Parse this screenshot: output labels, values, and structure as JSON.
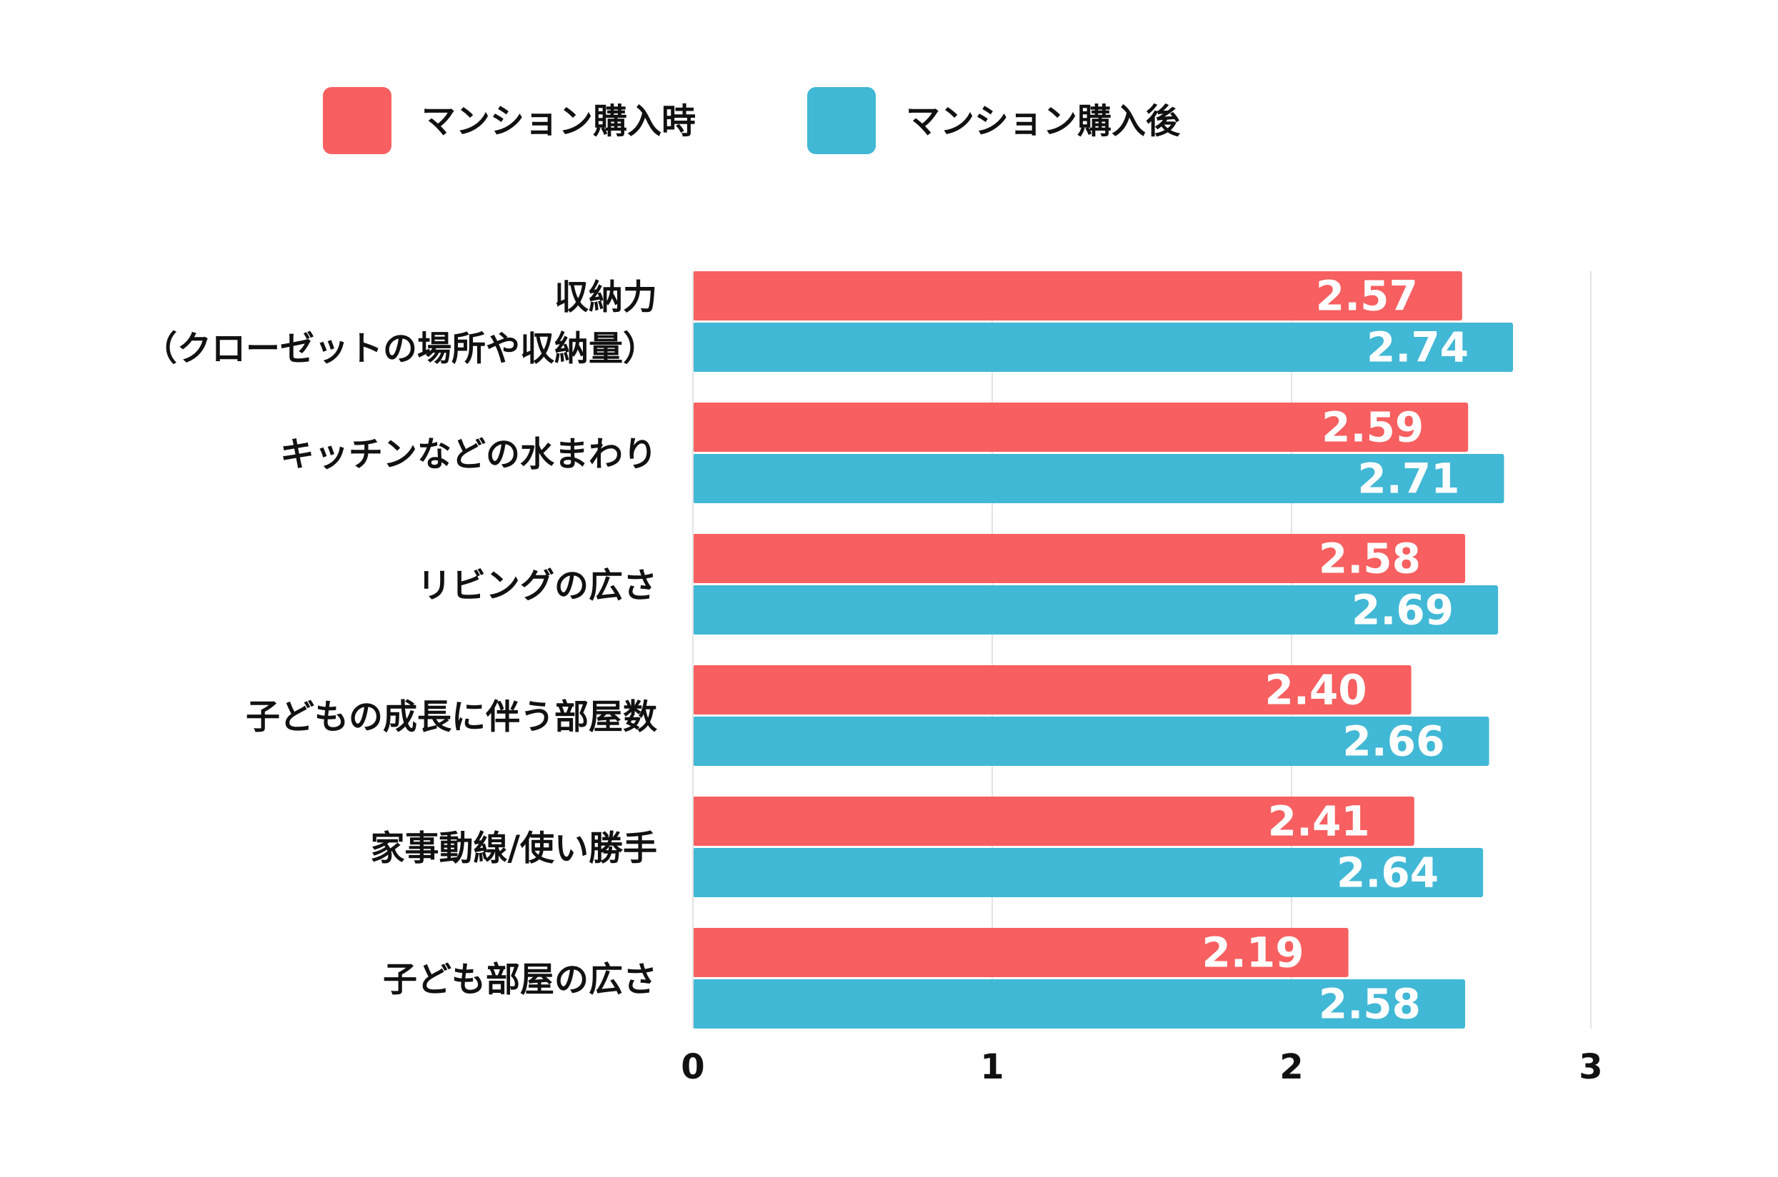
{
  "chart_data": {
    "type": "bar",
    "orientation": "horizontal",
    "categories": [
      [
        "収納力",
        "（クローゼットの場所や収納量）"
      ],
      [
        "キッチンなどの水まわり"
      ],
      [
        "リビングの広さ"
      ],
      [
        "子どもの成長に伴う部屋数"
      ],
      [
        "家事動線/使い勝手"
      ],
      [
        "子ども部屋の広さ"
      ]
    ],
    "series": [
      {
        "name": "マンション購入時",
        "color": "#F75F60",
        "values": [
          2.57,
          2.59,
          2.58,
          2.4,
          2.41,
          2.19
        ],
        "labels": [
          "2.57",
          "2.59",
          "2.58",
          "2.40",
          "2.41",
          "2.19"
        ]
      },
      {
        "name": "マンション購入後",
        "color": "#41B8D5",
        "values": [
          2.74,
          2.71,
          2.69,
          2.66,
          2.64,
          2.58
        ],
        "labels": [
          "2.74",
          "2.71",
          "2.69",
          "2.66",
          "2.64",
          "2.58"
        ]
      }
    ],
    "xlim": [
      0,
      3
    ],
    "xticks": [
      "0",
      "1",
      "2",
      "3"
    ],
    "grid": true,
    "legend_position": "top",
    "title": "",
    "xlabel": "",
    "ylabel": ""
  }
}
